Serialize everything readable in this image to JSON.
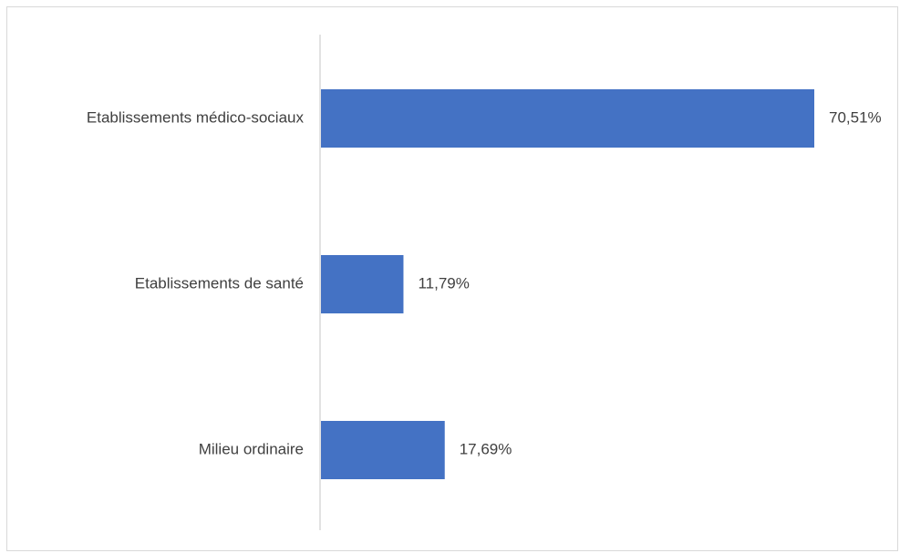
{
  "chart_data": {
    "type": "bar",
    "orientation": "horizontal",
    "categories": [
      "Etablissements médico-sociaux",
      "Etablissements de santé",
      "Milieu ordinaire"
    ],
    "values": [
      70.51,
      11.79,
      17.69
    ],
    "value_labels": [
      "70,51%",
      "11,79%",
      "17,69%"
    ],
    "unit": "%",
    "title": "",
    "xlabel": "",
    "ylabel": "",
    "xlim": [
      0,
      70.51
    ],
    "grid": false,
    "legend": "none",
    "colors": {
      "bar": "#4472C4",
      "axis": "#d9d9d9",
      "text": "#404040",
      "border": "#d9d9d9"
    }
  }
}
